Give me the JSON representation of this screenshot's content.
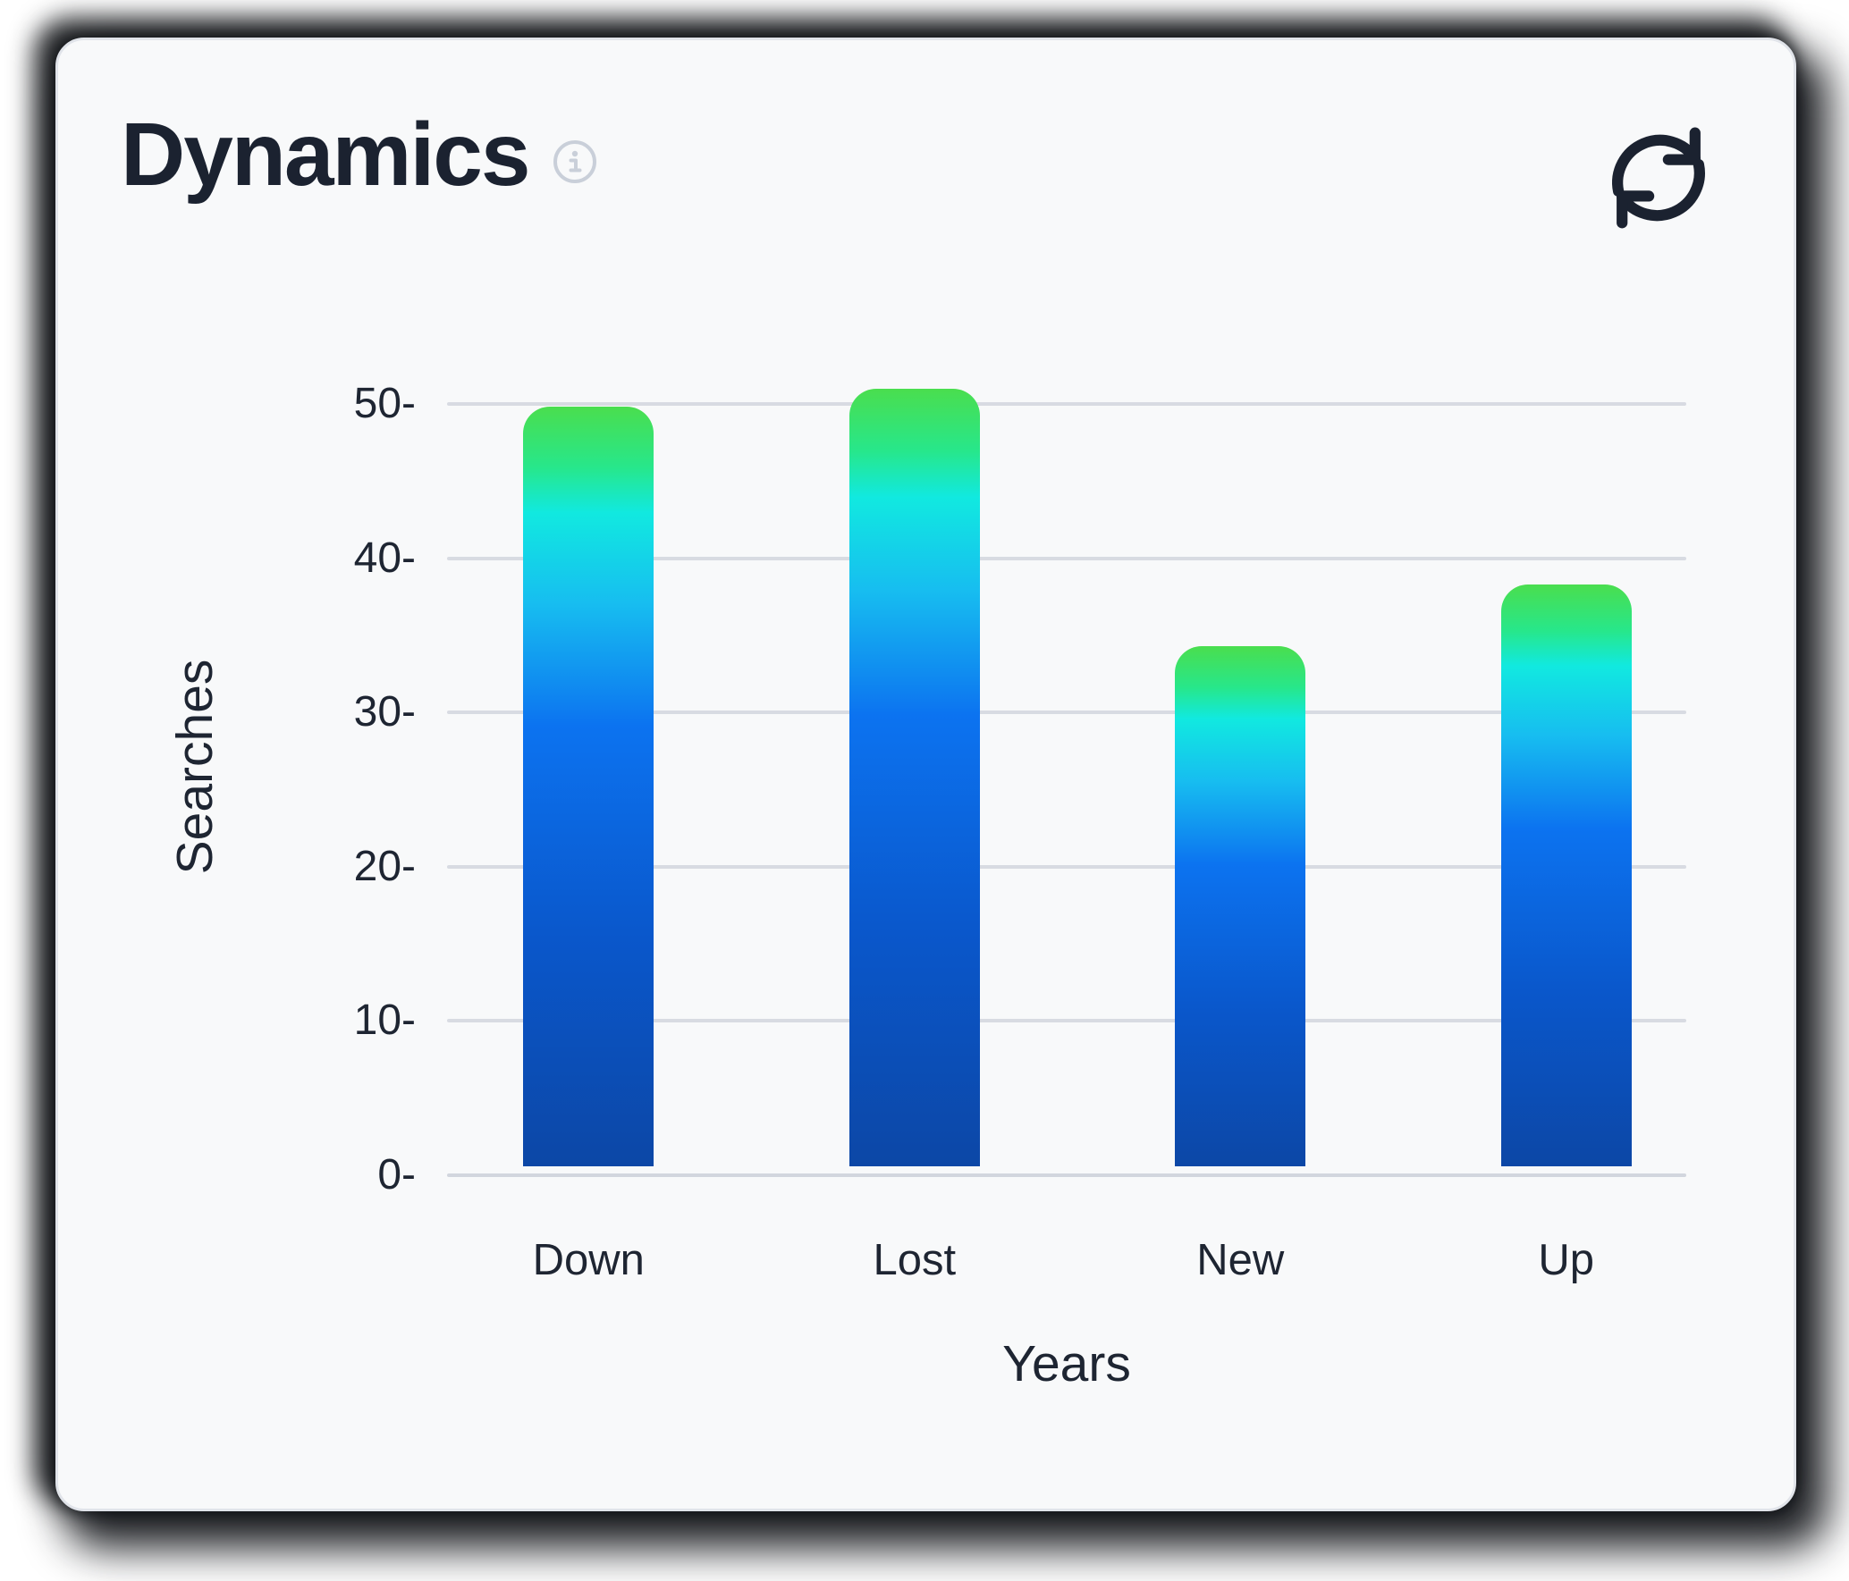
{
  "card": {
    "title": "Dynamics"
  },
  "icons": {
    "info": "info-icon",
    "refresh": "refresh-icon"
  },
  "colors": {
    "page_bg": "#ffffff",
    "card_bg": "#f8f9fa",
    "card_shadow": "#0a0c10",
    "text_dark": "#1b2230",
    "muted_icon": "#c9cfd9",
    "gridline": "#d8dbe2",
    "bar_top_green": "#4ade4e",
    "bar_cyan": "#11e9e0",
    "bar_blue": "#0c73f0",
    "bar_bottom_navy": "#0c47a6"
  },
  "chart_data": {
    "type": "bar",
    "title": "Dynamics",
    "categories": [
      "Down",
      "Lost",
      "New",
      "Up"
    ],
    "values": [
      49.8,
      51,
      34.3,
      38.3
    ],
    "xlabel": "Years",
    "ylabel": "Searches",
    "ylim": [
      0,
      50
    ],
    "yticks": [
      0,
      10,
      20,
      30,
      40,
      50
    ],
    "ytick_suffix": "-",
    "grid": true,
    "legend": false,
    "bar_gradient": [
      [
        "#4ade4e",
        0
      ],
      [
        "#27e78b",
        8
      ],
      [
        "#11e9e0",
        14
      ],
      [
        "#17bdf0",
        26
      ],
      [
        "#0c73f0",
        42
      ],
      [
        "#0a57cb",
        70
      ],
      [
        "#0c47a6",
        100
      ]
    ]
  }
}
